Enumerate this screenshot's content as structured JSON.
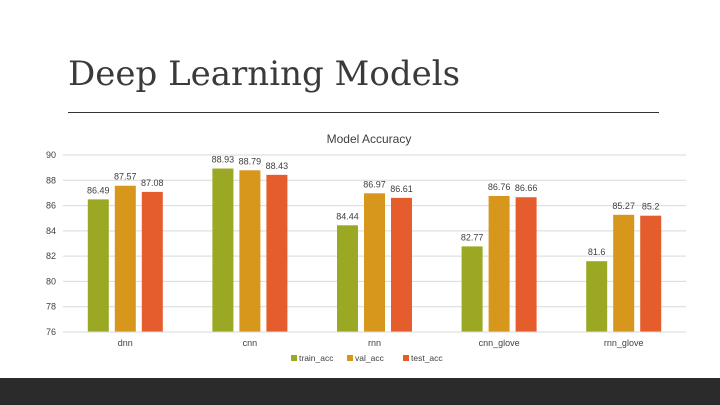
{
  "slide": {
    "title": "Deep Learning Models"
  },
  "colors": {
    "footer": "#2b2b2b",
    "grid": "#d9d9d9",
    "text": "#404040"
  },
  "chart_data": {
    "type": "bar",
    "title": "Model Accuracy",
    "xlabel": "",
    "ylabel": "",
    "categories": [
      "dnn",
      "cnn",
      "rnn",
      "cnn_glove",
      "rnn_glove"
    ],
    "ylim": [
      76,
      90
    ],
    "yticks": [
      76,
      78,
      80,
      82,
      84,
      86,
      88,
      90
    ],
    "grid": true,
    "legend_position": "bottom",
    "data_labels": true,
    "series": [
      {
        "name": "train_acc",
        "color": "#9aa823",
        "values": [
          86.49,
          88.93,
          84.44,
          82.77,
          81.6
        ]
      },
      {
        "name": "val_acc",
        "color": "#d7961c",
        "values": [
          87.57,
          88.79,
          86.97,
          86.76,
          85.27
        ]
      },
      {
        "name": "test_acc",
        "color": "#e55d2d",
        "values": [
          87.08,
          88.43,
          86.61,
          86.66,
          85.2
        ]
      }
    ]
  }
}
